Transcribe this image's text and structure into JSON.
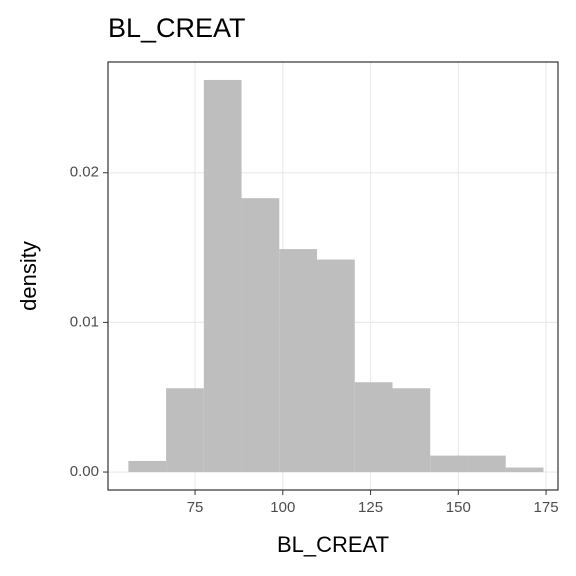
{
  "chart_data": {
    "type": "histogram",
    "title": "BL_CREAT",
    "x_label": "BL_CREAT",
    "y_label": "density",
    "bins": [
      56.0,
      66.75,
      77.5,
      88.25,
      99.0,
      109.75,
      120.5,
      131.25,
      142.0,
      152.75,
      163.5,
      174.25
    ],
    "values": [
      0.00074,
      0.0056,
      0.0262,
      0.0183,
      0.0149,
      0.0142,
      0.006,
      0.0056,
      0.0011,
      0.0011,
      0.0003
    ],
    "color": "#bebebe",
    "xlim": [
      50.2,
      178.4
    ],
    "xticks": [
      75,
      100,
      125,
      150,
      175
    ],
    "ylim": [
      -0.0012,
      0.0274
    ],
    "yticks": [
      {
        "value": 0,
        "label": "0.00"
      },
      {
        "value": 0.01,
        "label": "0.01"
      },
      {
        "value": 0.02,
        "label": "0.02"
      }
    ],
    "grid": true
  }
}
